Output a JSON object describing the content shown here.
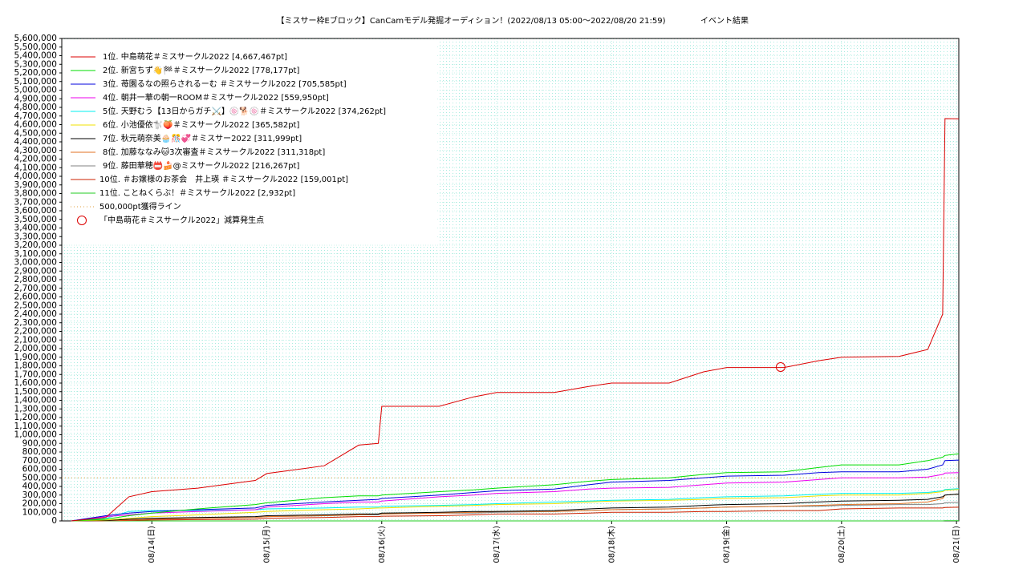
{
  "chart_data": {
    "type": "line",
    "title": "【ミスサー枠Eブロック】CanCamモデル発掘オーディション！(2022/08/13 05:00〜2022/08/20 21:59)",
    "subtitle": "イベント結果",
    "x": [
      13.3,
      13.6,
      13.8,
      14.0,
      14.4,
      14.9,
      15.0,
      15.5,
      15.8,
      15.97,
      16.0,
      16.5,
      16.8,
      17.0,
      17.5,
      17.8,
      18.0,
      18.5,
      18.8,
      19.0,
      19.5,
      19.8,
      20.0,
      20.5,
      20.75,
      20.88,
      20.9,
      21.02
    ],
    "xlim": [
      13.2167,
      21.02
    ],
    "xticks": [
      {
        "value": 14,
        "label": "08/14(日)"
      },
      {
        "value": 15,
        "label": "08/15(月)"
      },
      {
        "value": 16,
        "label": "08/16(火)"
      },
      {
        "value": 17,
        "label": "08/17(水)"
      },
      {
        "value": 18,
        "label": "08/18(木)"
      },
      {
        "value": 19,
        "label": "08/19(金)"
      },
      {
        "value": 20,
        "label": "08/20(土)"
      },
      {
        "value": 21,
        "label": "08/21(日)"
      }
    ],
    "ylim": [
      0,
      5600000
    ],
    "yticks": [
      0,
      {
        "value": 100000,
        "label": "100,000"
      },
      {
        "value": 200000,
        "label": "200,000"
      },
      {
        "value": 300000,
        "label": "300,000"
      },
      {
        "value": 400000,
        "label": "400,000"
      },
      {
        "value": 500000,
        "label": "500,000"
      },
      {
        "value": 600000,
        "label": "600,000"
      },
      {
        "value": 700000,
        "label": "700,000"
      },
      {
        "value": 800000,
        "label": "800,000"
      },
      {
        "value": 900000,
        "label": "900,000"
      },
      {
        "value": 1000000,
        "label": "1,000,000"
      },
      {
        "value": 1100000,
        "label": "1,100,000"
      },
      {
        "value": 1200000,
        "label": "1,200,000"
      },
      {
        "value": 1300000,
        "label": "1,300,000"
      },
      {
        "value": 1400000,
        "label": "1,400,000"
      },
      {
        "value": 1500000,
        "label": "1,500,000"
      },
      {
        "value": 1600000,
        "label": "1,600,000"
      },
      {
        "value": 1700000,
        "label": "1,700,000"
      },
      {
        "value": 1800000,
        "label": "1,800,000"
      },
      {
        "value": 1900000,
        "label": "1,900,000"
      },
      {
        "value": 2000000,
        "label": "2,000,000"
      },
      {
        "value": 2100000,
        "label": "2,100,000"
      },
      {
        "value": 2200000,
        "label": "2,200,000"
      },
      {
        "value": 2300000,
        "label": "2,300,000"
      },
      {
        "value": 2400000,
        "label": "2,400,000"
      },
      {
        "value": 2500000,
        "label": "2,500,000"
      },
      {
        "value": 2600000,
        "label": "2,600,000"
      },
      {
        "value": 2700000,
        "label": "2,700,000"
      },
      {
        "value": 2800000,
        "label": "2,800,000"
      },
      {
        "value": 2900000,
        "label": "2,900,000"
      },
      {
        "value": 3000000,
        "label": "3,000,000"
      },
      {
        "value": 3100000,
        "label": "3,100,000"
      },
      {
        "value": 3200000,
        "label": "3,200,000"
      },
      {
        "value": 3300000,
        "label": "3,300,000"
      },
      {
        "value": 3400000,
        "label": "3,400,000"
      },
      {
        "value": 3500000,
        "label": "3,500,000"
      },
      {
        "value": 3600000,
        "label": "3,600,000"
      },
      {
        "value": 3700000,
        "label": "3,700,000"
      },
      {
        "value": 3800000,
        "label": "3,800,000"
      },
      {
        "value": 3900000,
        "label": "3,900,000"
      },
      {
        "value": 4000000,
        "label": "4,000,000"
      },
      {
        "value": 4100000,
        "label": "4,100,000"
      },
      {
        "value": 4200000,
        "label": "4,200,000"
      },
      {
        "value": 4300000,
        "label": "4,300,000"
      },
      {
        "value": 4400000,
        "label": "4,400,000"
      },
      {
        "value": 4500000,
        "label": "4,500,000"
      },
      {
        "value": 4600000,
        "label": "4,600,000"
      },
      {
        "value": 4700000,
        "label": "4,700,000"
      },
      {
        "value": 4800000,
        "label": "4,800,000"
      },
      {
        "value": 4900000,
        "label": "4,900,000"
      },
      {
        "value": 5000000,
        "label": "5,000,000"
      },
      {
        "value": 5100000,
        "label": "5,100,000"
      },
      {
        "value": 5200000,
        "label": "5,200,000"
      },
      {
        "value": 5300000,
        "label": "5,300,000"
      },
      {
        "value": 5400000,
        "label": "5,400,000"
      },
      {
        "value": 5500000,
        "label": "5,500,000"
      },
      {
        "value": 5600000,
        "label": "5,600,000"
      }
    ],
    "grid": true,
    "series": [
      {
        "name": "1位. 中島萌花＃ミスサークル2022 [4,667,467pt]",
        "color": "#dd0000",
        "values": [
          0,
          40000,
          280000,
          340000,
          380000,
          470000,
          550000,
          640000,
          880000,
          900000,
          1330000,
          1330000,
          1440000,
          1490000,
          1490000,
          1560000,
          1600000,
          1600000,
          1730000,
          1780000,
          1780000,
          1860000,
          1900000,
          1910000,
          1990000,
          2400000,
          4670000,
          4667467
        ]
      },
      {
        "name": "2位. 新宮ちず👋🏁＃ミスサークル2022 [778,177pt]",
        "color": "#00dd00",
        "values": [
          0,
          20000,
          60000,
          90000,
          140000,
          190000,
          210000,
          270000,
          290000,
          290000,
          300000,
          340000,
          360000,
          380000,
          420000,
          460000,
          480000,
          500000,
          540000,
          560000,
          570000,
          620000,
          650000,
          650000,
          700000,
          740000,
          760000,
          778177
        ]
      },
      {
        "name": "3位. 苺園るなの照らされるーむ ＃ミスサークル2022 [705,585pt]",
        "color": "#0000dd",
        "values": [
          0,
          60000,
          90000,
          110000,
          130000,
          150000,
          180000,
          220000,
          240000,
          250000,
          260000,
          300000,
          330000,
          350000,
          370000,
          420000,
          450000,
          470000,
          500000,
          520000,
          530000,
          560000,
          570000,
          570000,
          600000,
          650000,
          700000,
          705585
        ]
      },
      {
        "name": "4位. 朝井一華の朝一ROOM＃ミスサークル2022 [559,950pt]",
        "color": "#ee00ee",
        "values": [
          0,
          50000,
          70000,
          90000,
          110000,
          130000,
          160000,
          200000,
          220000,
          220000,
          230000,
          280000,
          300000,
          320000,
          340000,
          370000,
          380000,
          390000,
          420000,
          440000,
          450000,
          480000,
          500000,
          500000,
          510000,
          540000,
          555000,
          559950
        ]
      },
      {
        "name": "5位. 天野むう【13日からガチ⚔️】🍥🐕🍥＃ミスサークル2022 [374,262pt]",
        "color": "#00f0f0",
        "values": [
          0,
          30000,
          110000,
          120000,
          120000,
          130000,
          140000,
          150000,
          160000,
          160000,
          170000,
          180000,
          190000,
          200000,
          220000,
          230000,
          240000,
          250000,
          270000,
          280000,
          290000,
          310000,
          320000,
          320000,
          330000,
          350000,
          365000,
          374262
        ]
      },
      {
        "name": "6位. 小池優依🐩🍑＃ミスサークル2022 [365,582pt]",
        "color": "#f0e000",
        "values": [
          0,
          10000,
          30000,
          50000,
          70000,
          100000,
          110000,
          130000,
          140000,
          150000,
          150000,
          170000,
          180000,
          190000,
          200000,
          220000,
          230000,
          240000,
          250000,
          260000,
          270000,
          290000,
          300000,
          300000,
          320000,
          340000,
          355000,
          365582
        ]
      },
      {
        "name": "7位. 秋元萌奈美🧁🎊💞＃ミスサー2022 [311,999pt]",
        "color": "#000000",
        "values": [
          0,
          5000,
          20000,
          30000,
          40000,
          50000,
          60000,
          70000,
          80000,
          80000,
          90000,
          100000,
          110000,
          110000,
          120000,
          140000,
          150000,
          160000,
          180000,
          190000,
          200000,
          220000,
          230000,
          240000,
          250000,
          280000,
          300000,
          311999
        ]
      },
      {
        "name": "8位. 加藤ななみ🐱3次審査＃ミスサークル2022 [311,318pt]",
        "color": "#e07020",
        "values": [
          0,
          5000,
          10000,
          20000,
          30000,
          40000,
          50000,
          60000,
          70000,
          80000,
          80000,
          90000,
          100000,
          110000,
          110000,
          120000,
          130000,
          140000,
          150000,
          160000,
          170000,
          180000,
          190000,
          200000,
          220000,
          260000,
          300000,
          311318
        ]
      },
      {
        "name": "9位. 藤田華穂📛🍰@ミスサークル2022 [216,267pt]",
        "color": "#808080",
        "values": [
          0,
          5000,
          10000,
          20000,
          30000,
          40000,
          50000,
          60000,
          70000,
          70000,
          80000,
          90000,
          90000,
          100000,
          110000,
          120000,
          130000,
          140000,
          150000,
          160000,
          170000,
          170000,
          180000,
          190000,
          190000,
          200000,
          210000,
          216267
        ]
      },
      {
        "name": "10位. ＃お嬢様のお茶会　井上瑛 ＃ミスサークル2022 [159,001pt]",
        "color": "#cc2200",
        "values": [
          0,
          2000,
          5000,
          10000,
          15000,
          20000,
          30000,
          40000,
          50000,
          50000,
          55000,
          60000,
          70000,
          80000,
          80000,
          90000,
          100000,
          100000,
          110000,
          110000,
          120000,
          120000,
          140000,
          150000,
          150000,
          150000,
          155000,
          159001
        ]
      },
      {
        "name": "11位. ことねくらぶ！＃ミスサークル2022 [2,932pt]",
        "color": "#22cc22",
        "values": [
          0,
          0,
          0,
          0,
          0,
          0,
          0,
          0,
          0,
          0,
          0,
          0,
          0,
          0,
          0,
          0,
          0,
          0,
          0,
          0,
          0,
          0,
          0,
          0,
          0,
          0,
          2932,
          2932
        ]
      }
    ],
    "threshold": {
      "value": 500000,
      "label": "500,000pt獲得ライン",
      "color": "#e0a040"
    },
    "marker": {
      "label": "「中島萌花＃ミスサークル2022」減算発生点",
      "x": 19.47,
      "y": 1786000,
      "color": "#dd0000"
    }
  }
}
